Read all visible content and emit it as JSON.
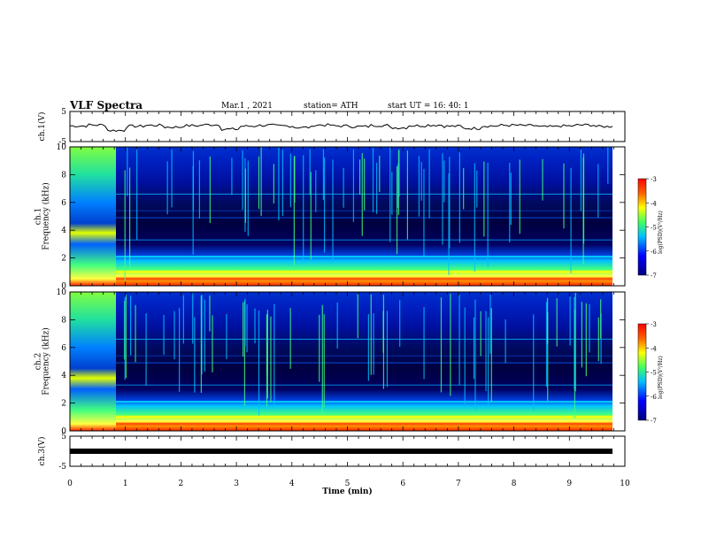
{
  "header": {
    "title": "VLF Spectra",
    "date": "Mar.1 , 2021",
    "station": "station= ATH",
    "start": "start UT = 16: 40: 1"
  },
  "chart_data": [
    {
      "type": "line",
      "panel": "ch1-waveform",
      "ylabel": "ch.1(V)",
      "ylim": [
        -5,
        5
      ],
      "yticks": [
        "5",
        "-5"
      ],
      "series": [
        {
          "values": [
            0.2,
            0.5,
            -1.3,
            0.1,
            0.4,
            -0.2,
            0.3,
            0.6,
            -0.9,
            0.1,
            0.4,
            0.2,
            -0.3,
            0.5,
            0.2,
            0.0,
            0.4,
            -0.4,
            0.3,
            0.5,
            0.1,
            -0.6,
            0.2,
            0.4,
            0.3,
            -0.1,
            0.2,
            0.5,
            0.0,
            0.3
          ]
        }
      ]
    },
    {
      "type": "heatmap",
      "panel": "ch1-spectrogram",
      "ylabel": "ch.1\nFrequency (kHz)",
      "ylim": [
        0,
        10
      ],
      "yticks": [
        "0",
        "2",
        "4",
        "6",
        "8",
        "10"
      ],
      "colorbar": {
        "label": "log(PSD)(V²/Hz)",
        "range": [
          -7,
          -3
        ],
        "ticks": [
          "-3",
          "-4",
          "-5",
          "-6",
          "-7"
        ]
      }
    },
    {
      "type": "heatmap",
      "panel": "ch2-spectrogram",
      "ylabel": "ch.2\nFrequency (kHz)",
      "ylim": [
        0,
        10
      ],
      "yticks": [
        "0",
        "2",
        "4",
        "6",
        "8",
        "10"
      ],
      "colorbar": {
        "label": "log(PSD)(V²/Hz)",
        "range": [
          -7,
          -3
        ],
        "ticks": [
          "-3",
          "-4",
          "-5",
          "-6",
          "-7"
        ]
      }
    },
    {
      "type": "line",
      "panel": "ch3-waveform",
      "ylabel": "ch.3(V)",
      "ylim": [
        -5,
        5
      ],
      "yticks": [
        "5",
        "-5"
      ],
      "series": [
        {
          "values": [
            0,
            0
          ]
        }
      ]
    }
  ],
  "xaxis": {
    "label": "Time (min)",
    "xlim": [
      0,
      10
    ],
    "ticks": [
      "0",
      "1",
      "2",
      "3",
      "4",
      "5",
      "6",
      "7",
      "8",
      "9",
      "10"
    ]
  },
  "colors": {
    "background": "#000a50",
    "low": "#0000a0",
    "mid": "#00a0ff",
    "green": "#40ff60",
    "yellow": "#ffff00",
    "red": "#ff2000"
  }
}
